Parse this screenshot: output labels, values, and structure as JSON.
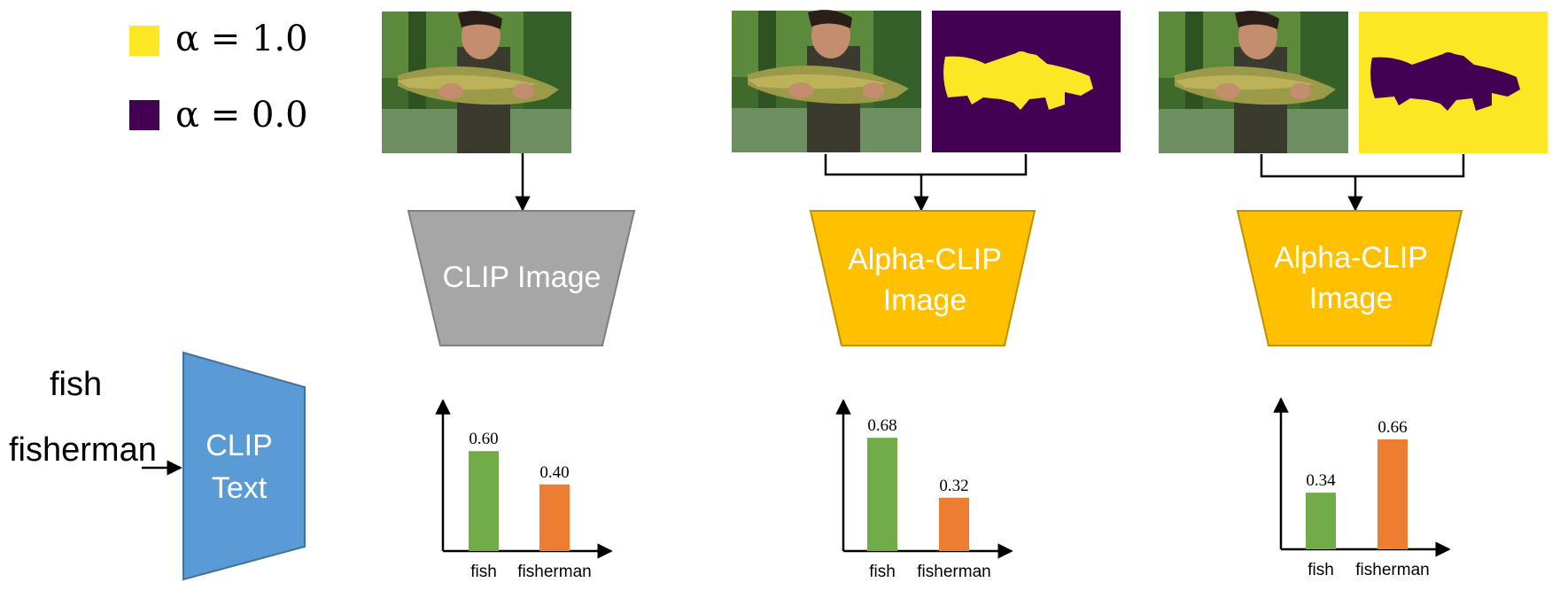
{
  "legend": {
    "items": [
      {
        "label": "α = 1.0",
        "color": "#FDE725"
      },
      {
        "label": "α = 0.0",
        "color": "#440154"
      }
    ]
  },
  "text_input": {
    "words": [
      "fish",
      "fisherman"
    ]
  },
  "encoders": {
    "clip_text": [
      "CLIP",
      "Text"
    ],
    "clip_image": [
      "CLIP Image"
    ],
    "alpha_clip_1": [
      "Alpha-CLIP",
      "Image"
    ],
    "alpha_clip_2": [
      "Alpha-CLIP",
      "Image"
    ]
  },
  "colors": {
    "clip_image_fill": "#A6A6A6",
    "alpha_clip_fill": "#FFC000",
    "clip_text_fill": "#5B9BD5",
    "bar_fish": "#70AD47",
    "bar_fisherman": "#ED7D31",
    "mask_yellow": "#FDE725",
    "mask_purple": "#440154"
  },
  "chart_data": [
    {
      "type": "bar",
      "categories": [
        "fish",
        "fisherman"
      ],
      "values": [
        0.6,
        0.4
      ],
      "value_labels": [
        "0.60",
        "0.40"
      ]
    },
    {
      "type": "bar",
      "categories": [
        "fish",
        "fisherman"
      ],
      "values": [
        0.68,
        0.32
      ],
      "value_labels": [
        "0.68",
        "0.32"
      ]
    },
    {
      "type": "bar",
      "categories": [
        "fish",
        "fisherman"
      ],
      "values": [
        0.34,
        0.66
      ],
      "value_labels": [
        "0.34",
        "0.66"
      ]
    }
  ]
}
